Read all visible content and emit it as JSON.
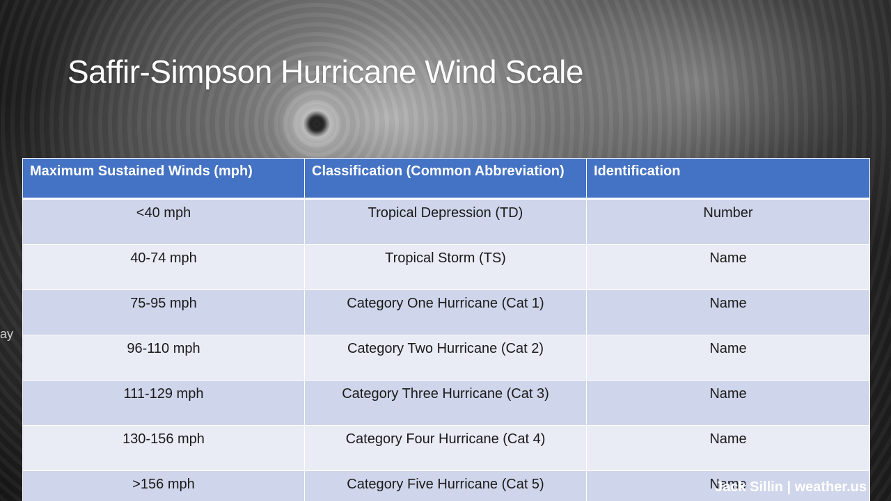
{
  "slide": {
    "title": "Saffir-Simpson Hurricane Wind Scale",
    "edge_text": "ay",
    "footer": "Jack Sillin | weather.us"
  },
  "table": {
    "headers": [
      "Maximum Sustained Winds (mph)",
      "Classification (Common Abbreviation)",
      "Identification"
    ],
    "rows": [
      [
        "<40 mph",
        "Tropical Depression (TD)",
        "Number"
      ],
      [
        "40-74 mph",
        "Tropical Storm (TS)",
        "Name"
      ],
      [
        "75-95 mph",
        "Category One Hurricane (Cat 1)",
        "Name"
      ],
      [
        "96-110 mph",
        "Category Two Hurricane (Cat 2)",
        "Name"
      ],
      [
        "111-129 mph",
        "Category Three Hurricane (Cat 3)",
        "Name"
      ],
      [
        "130-156 mph",
        "Category Four Hurricane (Cat 4)",
        "Name"
      ],
      [
        ">156 mph",
        "Category Five Hurricane (Cat 5)",
        "Name"
      ]
    ]
  },
  "colors": {
    "header_bg": "#4472c4",
    "row_odd_bg": "#cfd5ea",
    "row_even_bg": "#e9ebf5",
    "title_text": "#ffffff"
  }
}
